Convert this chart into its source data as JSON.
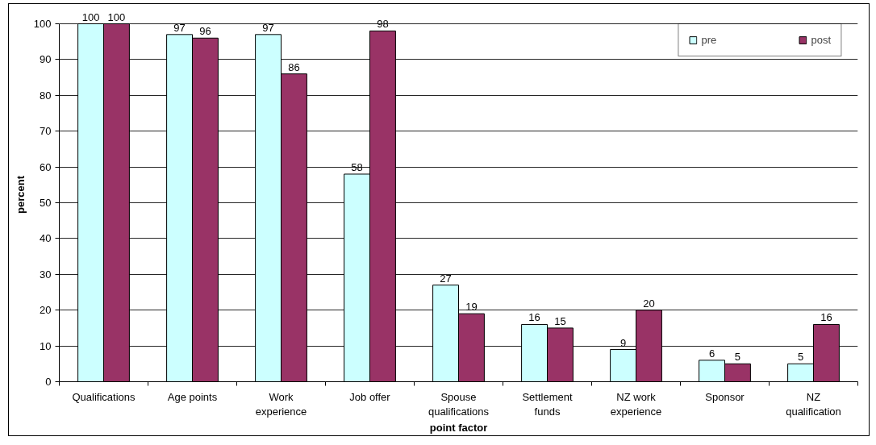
{
  "chart_data": {
    "type": "bar",
    "xlabel": "point factor",
    "ylabel": "percent",
    "categories": [
      "Qualifications",
      "Age points",
      "Work experience",
      "Job offer",
      "Spouse qualifications",
      "Settlement funds",
      "NZ work experience",
      "Sponsor",
      "NZ qualification"
    ],
    "series": [
      {
        "name": "pre",
        "color": "#ccffff",
        "values": [
          100,
          97,
          97,
          58,
          27,
          16,
          9,
          6,
          5
        ]
      },
      {
        "name": "post",
        "color": "#993366",
        "values": [
          100,
          96,
          86,
          98,
          19,
          15,
          20,
          5,
          16
        ]
      }
    ],
    "ylim": [
      0,
      100
    ],
    "yticks": [
      0,
      10,
      20,
      30,
      40,
      50,
      60,
      70,
      80,
      90,
      100
    ],
    "grid": "y",
    "legend": "top right",
    "data_labels": true
  }
}
